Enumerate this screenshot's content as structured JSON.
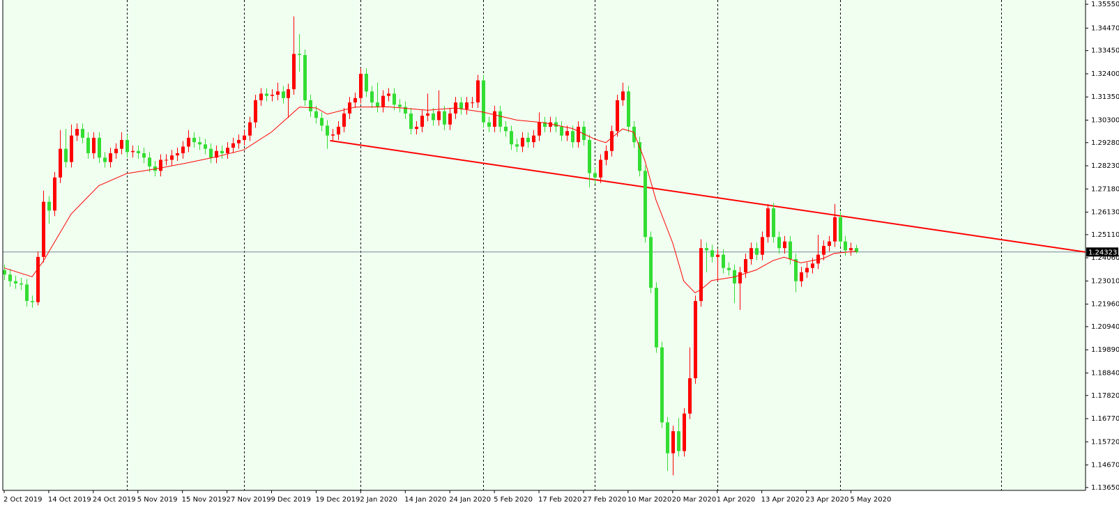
{
  "chart_data": {
    "type": "candlestick",
    "categories": [
      "2 Oct 2019",
      null,
      null,
      null,
      null,
      null,
      null,
      null,
      "14 Oct 2019",
      null,
      null,
      null,
      null,
      null,
      null,
      null,
      "24 Oct 2019",
      null,
      null,
      null,
      null,
      null,
      null,
      null,
      "5 Nov 2019",
      null,
      null,
      null,
      null,
      null,
      null,
      null,
      "15 Nov 2019",
      null,
      null,
      null,
      null,
      null,
      null,
      null,
      "27 Nov 2019",
      null,
      null,
      null,
      null,
      null,
      null,
      null,
      "9 Dec 2019",
      null,
      null,
      null,
      null,
      null,
      null,
      null,
      "19 Dec 2019",
      null,
      null,
      null,
      null,
      null,
      null,
      null,
      "2 Jan 2020",
      null,
      null,
      null,
      null,
      null,
      null,
      null,
      "14 Jan 2020",
      null,
      null,
      null,
      null,
      null,
      null,
      null,
      "24 Jan 2020",
      null,
      null,
      null,
      null,
      null,
      null,
      null,
      "5 Feb 2020",
      null,
      null,
      null,
      null,
      null,
      null,
      null,
      "17 Feb 2020",
      null,
      null,
      null,
      null,
      null,
      null,
      null,
      "27 Feb 2020",
      null,
      null,
      null,
      null,
      null,
      null,
      null,
      "10 Mar 2020",
      null,
      null,
      null,
      null,
      null,
      null,
      null,
      "20 Mar 2020",
      null,
      null,
      null,
      null,
      null,
      null,
      null,
      "1 Apr 2020",
      null,
      null,
      null,
      null,
      null,
      null,
      null,
      "13 Apr 2020",
      null,
      null,
      null,
      null,
      null,
      null,
      null,
      "23 Apr 2020",
      null,
      null,
      null,
      null,
      null,
      null,
      null,
      "5 May 2020",
      null
    ],
    "open": [
      1.235,
      1.233,
      1.23,
      1.229,
      1.2285,
      1.221,
      1.2205,
      1.241,
      1.266,
      1.262,
      1.277,
      1.29,
      1.284,
      1.296,
      1.299,
      1.295,
      1.288,
      1.295,
      1.286,
      1.284,
      1.288,
      1.29,
      1.294,
      1.2885,
      1.289,
      1.288,
      1.286,
      1.282,
      1.28,
      1.285,
      1.285,
      1.287,
      1.288,
      1.291,
      1.295,
      1.293,
      1.292,
      1.29,
      1.286,
      1.289,
      1.288,
      1.2905,
      1.2925,
      1.294,
      1.296,
      1.302,
      1.312,
      1.315,
      1.314,
      1.3145,
      1.316,
      1.313,
      1.317,
      1.333,
      1.3325,
      1.312,
      1.307,
      1.304,
      1.3005,
      1.296,
      1.2965,
      1.3,
      1.306,
      1.311,
      1.313,
      1.324,
      1.316,
      1.311,
      1.309,
      1.314,
      1.315,
      1.31,
      1.309,
      1.306,
      1.299,
      1.3,
      1.305,
      1.306,
      1.303,
      1.307,
      1.301,
      1.306,
      1.311,
      1.308,
      1.311,
      1.311,
      1.321,
      1.302,
      1.3,
      1.307,
      1.3,
      1.298,
      1.292,
      1.291,
      1.295,
      1.293,
      1.296,
      1.302,
      1.3,
      1.302,
      1.3,
      1.296,
      1.298,
      1.293,
      1.3,
      1.294,
      1.279,
      1.277,
      1.285,
      1.289,
      1.298,
      1.312,
      1.316,
      1.3,
      1.293,
      1.28,
      1.25,
      1.227,
      1.2,
      1.166,
      1.152,
      1.162,
      1.153,
      1.17,
      1.186,
      1.221,
      1.245,
      1.244,
      1.241,
      1.242,
      1.236,
      1.235,
      1.229,
      1.234,
      1.24,
      1.245,
      1.242,
      1.25,
      1.263,
      1.25,
      1.245,
      1.248,
      1.24,
      1.23,
      1.234,
      1.236,
      1.238,
      1.242,
      1.246,
      1.248,
      1.259,
      1.248,
      1.244,
      1.245
    ],
    "high": [
      1.2375,
      1.2355,
      1.2325,
      1.2315,
      1.231,
      1.2235,
      1.2435,
      1.271,
      1.2685,
      1.2795,
      1.2985,
      1.299,
      1.301,
      1.3015,
      1.3015,
      1.2975,
      1.2975,
      1.2975,
      1.2885,
      1.2905,
      1.2925,
      1.2975,
      1.2965,
      1.2915,
      1.2915,
      1.2905,
      1.2885,
      1.2845,
      1.2875,
      1.2875,
      1.2895,
      1.2905,
      1.2935,
      1.2985,
      1.2975,
      1.2955,
      1.2945,
      1.2925,
      1.2915,
      1.2915,
      1.293,
      1.295,
      1.2965,
      1.2985,
      1.3045,
      1.3145,
      1.3175,
      1.3175,
      1.317,
      1.32,
      1.3185,
      1.3195,
      1.35,
      1.342,
      1.335,
      1.3145,
      1.3095,
      1.3065,
      1.303,
      1.299,
      1.3025,
      1.3085,
      1.3135,
      1.3155,
      1.3265,
      1.3265,
      1.3185,
      1.32,
      1.3165,
      1.3175,
      1.3175,
      1.3125,
      1.3115,
      1.3085,
      1.3025,
      1.3075,
      1.315,
      1.3085,
      1.3165,
      1.3095,
      1.3085,
      1.3135,
      1.3135,
      1.3135,
      1.3135,
      1.3235,
      1.3235,
      1.3045,
      1.3095,
      1.3095,
      1.3025,
      1.3005,
      1.2945,
      1.2975,
      1.2975,
      1.2985,
      1.3065,
      1.3045,
      1.3045,
      1.3045,
      1.3025,
      1.3005,
      1.3005,
      1.3025,
      1.3025,
      1.2965,
      1.2815,
      1.2875,
      1.2915,
      1.3005,
      1.3145,
      1.32,
      1.3185,
      1.3025,
      1.2955,
      1.2825,
      1.2525,
      1.2295,
      1.2025,
      1.1685,
      1.1645,
      1.168,
      1.1725,
      1.2,
      1.2235,
      1.249,
      1.2475,
      1.2465,
      1.2445,
      1.2445,
      1.2385,
      1.2375,
      1.2365,
      1.2425,
      1.2475,
      1.2475,
      1.2525,
      1.265,
      1.2655,
      1.2525,
      1.2505,
      1.2505,
      1.2425,
      1.2365,
      1.2385,
      1.2405,
      1.251,
      1.2485,
      1.2505,
      1.265,
      1.2615,
      1.2505,
      1.2475,
      1.2465
    ],
    "low": [
      1.2305,
      1.2275,
      1.2265,
      1.226,
      1.2185,
      1.218,
      1.219,
      1.2385,
      1.256,
      1.2595,
      1.2745,
      1.2815,
      1.2815,
      1.2935,
      1.2925,
      1.2855,
      1.2855,
      1.2835,
      1.2815,
      1.2815,
      1.2855,
      1.2875,
      1.286,
      1.286,
      1.2855,
      1.2835,
      1.2795,
      1.2775,
      1.2775,
      1.2825,
      1.2825,
      1.2845,
      1.2855,
      1.2885,
      1.2905,
      1.2895,
      1.2875,
      1.2835,
      1.2835,
      1.2855,
      1.2855,
      1.288,
      1.29,
      1.2915,
      1.2935,
      1.2995,
      1.3095,
      1.3115,
      1.3115,
      1.312,
      1.3105,
      1.304,
      1.3145,
      1.325,
      1.3095,
      1.3045,
      1.3015,
      1.298,
      1.29,
      1.2935,
      1.294,
      1.2975,
      1.3035,
      1.3085,
      1.3105,
      1.3135,
      1.3085,
      1.3065,
      1.3065,
      1.3115,
      1.3075,
      1.3065,
      1.3035,
      1.2965,
      1.2965,
      1.2975,
      1.3025,
      1.3005,
      1.3005,
      1.2985,
      1.2985,
      1.3035,
      1.3055,
      1.3055,
      1.3085,
      1.3085,
      1.2995,
      1.2975,
      1.2975,
      1.2975,
      1.2955,
      1.2895,
      1.2885,
      1.2885,
      1.2905,
      1.2905,
      1.2935,
      1.2975,
      1.2975,
      1.2975,
      1.2935,
      1.2935,
      1.2905,
      1.2905,
      1.2915,
      1.2725,
      1.274,
      1.2745,
      1.2825,
      1.2865,
      1.2955,
      1.3095,
      1.2975,
      1.2905,
      1.2775,
      1.2475,
      1.2245,
      1.1975,
      1.1635,
      1.144,
      1.142,
      1.1505,
      1.1505,
      1.1675,
      1.1835,
      1.2185,
      1.234,
      1.2385,
      1.23,
      1.2335,
      1.2325,
      1.22,
      1.217,
      1.2315,
      1.2375,
      1.2395,
      1.2395,
      1.2475,
      1.2475,
      1.2425,
      1.2425,
      1.2375,
      1.225,
      1.2275,
      1.2315,
      1.2335,
      1.2355,
      1.2395,
      1.2435,
      1.2455,
      1.2455,
      1.2415,
      1.2415,
      1.2425
    ],
    "close": [
      1.233,
      1.23,
      1.229,
      1.2285,
      1.221,
      1.2205,
      1.241,
      1.266,
      1.262,
      1.277,
      1.29,
      1.284,
      1.296,
      1.299,
      1.295,
      1.288,
      1.295,
      1.286,
      1.284,
      1.288,
      1.29,
      1.294,
      1.2885,
      1.289,
      1.288,
      1.286,
      1.282,
      1.28,
      1.285,
      1.285,
      1.287,
      1.288,
      1.291,
      1.295,
      1.293,
      1.292,
      1.29,
      1.286,
      1.289,
      1.288,
      1.2905,
      1.2925,
      1.294,
      1.296,
      1.302,
      1.312,
      1.315,
      1.314,
      1.3145,
      1.316,
      1.313,
      1.317,
      1.333,
      1.3325,
      1.312,
      1.307,
      1.304,
      1.3005,
      1.296,
      1.2965,
      1.3,
      1.306,
      1.311,
      1.313,
      1.324,
      1.316,
      1.311,
      1.309,
      1.314,
      1.315,
      1.31,
      1.309,
      1.306,
      1.299,
      1.3,
      1.305,
      1.306,
      1.303,
      1.307,
      1.301,
      1.306,
      1.311,
      1.308,
      1.311,
      1.311,
      1.321,
      1.302,
      1.3,
      1.307,
      1.3,
      1.298,
      1.292,
      1.291,
      1.295,
      1.293,
      1.296,
      1.302,
      1.3,
      1.302,
      1.3,
      1.296,
      1.298,
      1.293,
      1.3,
      1.294,
      1.279,
      1.277,
      1.285,
      1.289,
      1.298,
      1.312,
      1.316,
      1.3,
      1.293,
      1.28,
      1.25,
      1.227,
      1.2,
      1.166,
      1.152,
      1.162,
      1.153,
      1.17,
      1.186,
      1.221,
      1.245,
      1.244,
      1.241,
      1.242,
      1.236,
      1.235,
      1.229,
      1.234,
      1.24,
      1.245,
      1.242,
      1.25,
      1.263,
      1.25,
      1.245,
      1.248,
      1.24,
      1.23,
      1.234,
      1.236,
      1.238,
      1.242,
      1.246,
      1.248,
      1.259,
      1.248,
      1.244,
      1.245,
      1.2432
    ],
    "up_color": "#ff0000",
    "down_color": "#33dd33",
    "ylim": [
      1.13519,
      1.35744
    ],
    "yticks": [
      {
        "value": 1.3555,
        "label": "1.35550"
      },
      {
        "value": 1.3447,
        "label": "1.34470"
      },
      {
        "value": 1.3345,
        "label": "1.33450"
      },
      {
        "value": 1.324,
        "label": "1.32400"
      },
      {
        "value": 1.3135,
        "label": "1.31350"
      },
      {
        "value": 1.303,
        "label": "1.30300"
      },
      {
        "value": 1.2928,
        "label": "1.29280"
      },
      {
        "value": 1.2823,
        "label": "1.28230"
      },
      {
        "value": 1.2718,
        "label": "1.27180"
      },
      {
        "value": 1.2613,
        "label": "1.26130"
      },
      {
        "value": 1.2511,
        "label": "1.25110"
      },
      {
        "value": 1.2406,
        "label": "1.24060"
      },
      {
        "value": 1.2301,
        "label": "1.23010"
      },
      {
        "value": 1.2196,
        "label": "1.21960"
      },
      {
        "value": 1.2094,
        "label": "1.20940"
      },
      {
        "value": 1.1989,
        "label": "1.19890"
      },
      {
        "value": 1.1884,
        "label": "1.18840"
      },
      {
        "value": 1.1782,
        "label": "1.17820"
      },
      {
        "value": 1.1677,
        "label": "1.16770"
      },
      {
        "value": 1.1572,
        "label": "1.15720"
      },
      {
        "value": 1.1467,
        "label": "1.14670"
      },
      {
        "value": 1.1365,
        "label": "1.13650"
      }
    ],
    "separators": [
      22,
      43,
      64,
      86,
      106,
      128,
      150,
      179
    ],
    "ma": {
      "color": "#ff0000",
      "x": [
        0,
        5,
        7,
        12,
        17,
        22,
        27,
        33,
        38,
        43,
        48,
        53,
        56,
        58,
        63,
        69,
        76,
        81,
        86,
        92,
        97,
        102,
        106,
        108,
        111,
        113,
        115,
        117,
        120,
        122,
        124,
        125,
        127,
        131,
        135,
        138,
        140,
        143,
        147,
        149,
        153
      ],
      "values": [
        1.236,
        1.232,
        1.239,
        1.2604,
        1.2733,
        1.2788,
        1.2808,
        1.2837,
        1.2863,
        1.2895,
        1.2976,
        1.3089,
        1.3085,
        1.3057,
        1.3089,
        1.309,
        1.3075,
        1.3085,
        1.3066,
        1.303,
        1.3018,
        1.2992,
        1.2944,
        1.2928,
        1.299,
        1.2976,
        1.2847,
        1.2669,
        1.2474,
        1.23,
        1.2248,
        1.226,
        1.2303,
        1.2319,
        1.2351,
        1.2393,
        1.2409,
        1.2383,
        1.2403,
        1.2426,
        1.2436
      ]
    },
    "trendline": {
      "color": "#ff0000",
      "x": [
        58.5,
        194.1
      ],
      "values": [
        1.2937,
        1.2432
      ]
    },
    "current_price": {
      "value": 1.24323,
      "color": "#778899"
    }
  }
}
